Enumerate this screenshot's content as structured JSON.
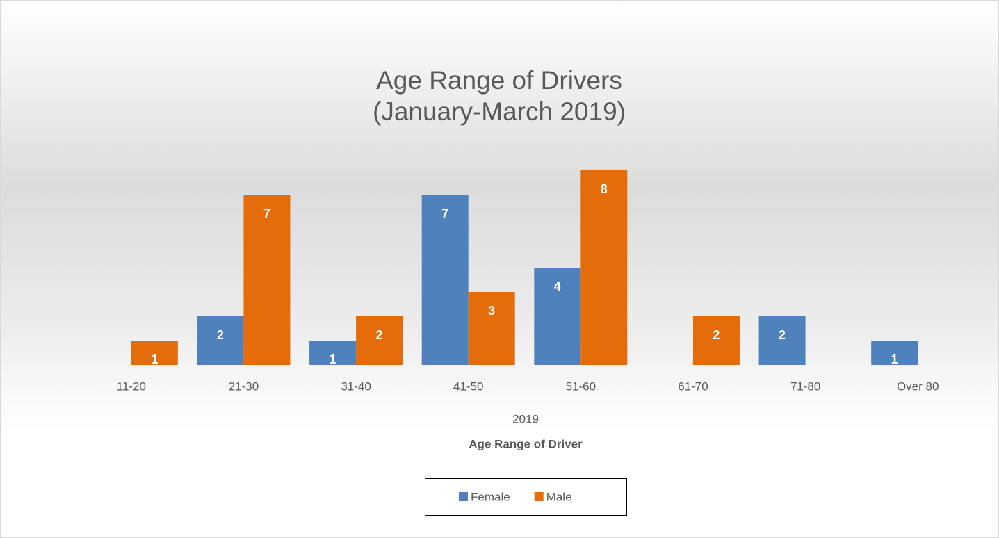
{
  "chart_data": {
    "type": "bar",
    "title": "Age Range of Drivers",
    "subtitle": "(January-March 2019)",
    "categories": [
      "11-20",
      "21-30",
      "31-40",
      "41-50",
      "51-60",
      "61-70",
      "71-80",
      "Over 80"
    ],
    "x_group_label": "2019",
    "x_label": "Age Range of Driver",
    "series": [
      {
        "name": "Female",
        "color": "#4f81bd",
        "values": [
          null,
          2,
          1,
          7,
          4,
          null,
          2,
          1
        ]
      },
      {
        "name": "Male",
        "color": "#e46c0a",
        "values": [
          1,
          7,
          2,
          3,
          8,
          2,
          null,
          null
        ]
      }
    ],
    "legend": "bottom"
  }
}
